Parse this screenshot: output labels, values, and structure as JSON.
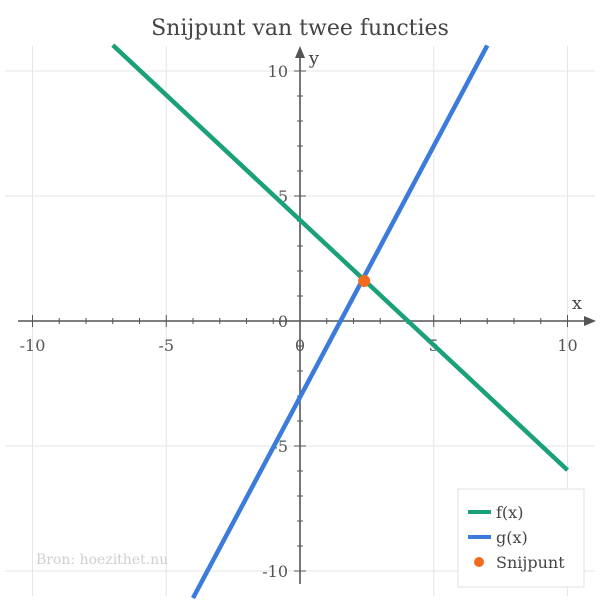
{
  "chart_data": {
    "type": "line",
    "title": "Snijpunt van twee functies",
    "xlabel": "x",
    "ylabel": "y",
    "xlim": [
      -10,
      10
    ],
    "ylim": [
      -10,
      10
    ],
    "grid": true,
    "xticks": [
      -10,
      -5,
      0,
      5,
      10
    ],
    "yticks": [
      -10,
      -5,
      0,
      5,
      10
    ],
    "series": [
      {
        "name": "f(x)",
        "color": "#1aa179",
        "x": [
          -7,
          10
        ],
        "y": [
          11.035,
          -5.965
        ]
      },
      {
        "name": "g(x)",
        "color": "#3a7bdc",
        "x": [
          -4,
          7
        ],
        "y": [
          -11.085,
          11.025
        ]
      }
    ],
    "points": [
      {
        "name": "Snijpunt",
        "color": "#f26b1d",
        "x": 2.4,
        "y": 1.6
      }
    ],
    "legend": {
      "position": "bottom-right",
      "entries": [
        "f(x)",
        "g(x)",
        "Snijpunt"
      ]
    },
    "source": "Bron: hoezithet.nu"
  }
}
